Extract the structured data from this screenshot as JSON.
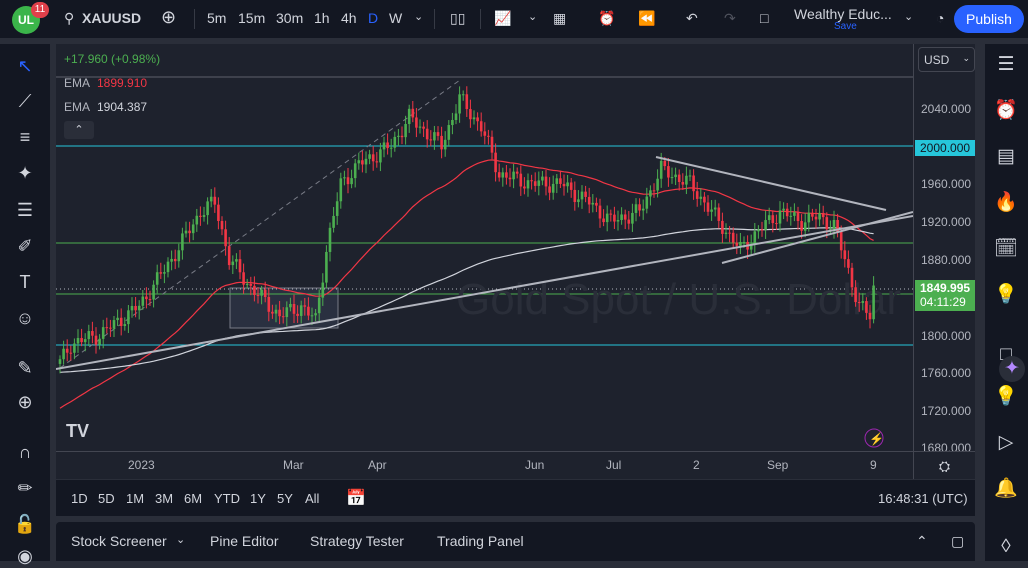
{
  "header": {
    "badge_count": "11",
    "logo": "UL",
    "symbol": "XAUUSD",
    "intervals": [
      "5m",
      "15m",
      "30m",
      "1h",
      "4h",
      "D",
      "W"
    ],
    "active_interval": "D",
    "layout_name": "Wealthy Educ...",
    "save_label": "Save",
    "publish": "Publish"
  },
  "legend": {
    "change": "+17.960 (+0.98%)",
    "ema1_label": "EMA",
    "ema1_value": "1899.910",
    "ema2_label": "EMA",
    "ema2_value": "1904.387"
  },
  "price_axis": {
    "currency": "USD",
    "ticks": [
      "2040.000",
      "2000.000",
      "1960.000",
      "1920.000",
      "1880.000",
      "1800.000",
      "1760.000",
      "1720.000",
      "1680.000"
    ],
    "level_label": "2000.000",
    "last_price": "1849.995",
    "countdown": "04:11:29"
  },
  "time_axis": {
    "ticks": [
      "2023",
      "Mar",
      "Apr",
      "Jun",
      "Jul",
      "2",
      "Sep",
      "9"
    ]
  },
  "range_bar": {
    "ranges": [
      "1D",
      "5D",
      "1M",
      "3M",
      "6M",
      "YTD",
      "1Y",
      "5Y",
      "All"
    ],
    "time": "16:48:31 (UTC)"
  },
  "bottom_panel": {
    "tabs": [
      "Stock Screener",
      "Pine Editor",
      "Strategy Tester",
      "Trading Panel"
    ]
  },
  "watermark": "Gold Spot / U.S. Dollar",
  "colors": {
    "up": "#4caf50",
    "down": "#f23645",
    "accent": "#2962ff",
    "level_cyan": "#26c6da",
    "level_green": "#4caf50"
  },
  "price_path": [
    [
      0,
      1770
    ],
    [
      3,
      1790
    ],
    [
      11,
      1800
    ],
    [
      22,
      1830
    ],
    [
      31,
      1880
    ],
    [
      39,
      1930
    ],
    [
      43,
      1940
    ],
    [
      47,
      1880
    ],
    [
      53,
      1850
    ],
    [
      61,
      1820
    ],
    [
      67,
      1830
    ],
    [
      71,
      1815
    ],
    [
      74,
      1890
    ],
    [
      78,
      1960
    ],
    [
      83,
      1980
    ],
    [
      92,
      2000
    ],
    [
      97,
      2030
    ],
    [
      106,
      2000
    ],
    [
      111,
      2050
    ],
    [
      117,
      2020
    ],
    [
      122,
      1970
    ],
    [
      131,
      1960
    ],
    [
      139,
      1960
    ],
    [
      147,
      1940
    ],
    [
      153,
      1920
    ],
    [
      161,
      1930
    ],
    [
      167,
      1975
    ],
    [
      175,
      1960
    ],
    [
      183,
      1920
    ],
    [
      189,
      1890
    ],
    [
      194,
      1910
    ],
    [
      200,
      1930
    ],
    [
      206,
      1920
    ],
    [
      211,
      1925
    ],
    [
      215,
      1915
    ],
    [
      218,
      1880
    ],
    [
      222,
      1830
    ],
    [
      225,
      1820
    ],
    [
      226,
      1850
    ]
  ]
}
